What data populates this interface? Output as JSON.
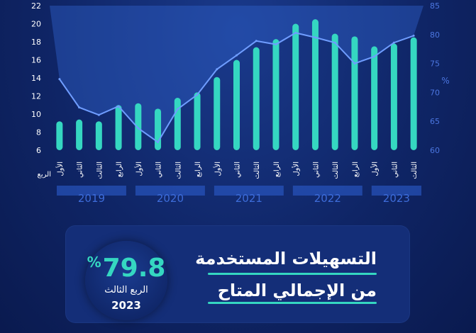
{
  "chart_data": {
    "type": "bar+line",
    "categories": [
      "الأول",
      "الثاني",
      "الثالث",
      "الرابع",
      "الأول",
      "الثاني",
      "الثالث",
      "الرابع",
      "الأول",
      "الثاني",
      "الثالث",
      "الرابع",
      "الأول",
      "الثاني",
      "الثالث",
      "الرابع",
      "الأول",
      "الثاني",
      "الثالث"
    ],
    "years": [
      {
        "label": "2019",
        "count": 4
      },
      {
        "label": "2020",
        "count": 4
      },
      {
        "label": "2021",
        "count": 4
      },
      {
        "label": "2022",
        "count": 4
      },
      {
        "label": "2023",
        "count": 3
      }
    ],
    "axis_category_title": "الربع",
    "series": [
      {
        "kind": "bar",
        "axis": "left",
        "values": [
          9.2,
          9.4,
          9.2,
          11.0,
          11.2,
          10.6,
          11.8,
          12.4,
          14.1,
          16.0,
          17.4,
          18.3,
          20.0,
          20.5,
          18.9,
          18.6,
          17.5,
          17.8,
          18.5
        ]
      },
      {
        "kind": "line",
        "axis": "right",
        "values": [
          72.3,
          67.4,
          66.1,
          67.6,
          63.8,
          61.4,
          67.1,
          69.6,
          74.0,
          76.4,
          78.9,
          78.3,
          80.3,
          79.5,
          78.6,
          75.0,
          76.2,
          78.6,
          79.8
        ]
      }
    ],
    "left_axis": {
      "min": 6,
      "max": 22,
      "ticks": [
        6,
        8,
        10,
        12,
        14,
        16,
        18,
        20,
        22
      ]
    },
    "right_axis": {
      "min": 60,
      "max": 85,
      "ticks": [
        60,
        65,
        70,
        75,
        80,
        85
      ],
      "label": "%"
    },
    "colors": {
      "bar": "#35d7c1",
      "line": "#6f9dff",
      "area": "#2f5fc7",
      "tick": "#4b76e0",
      "year_box": "#2b5ccc",
      "year_text": "#3d6cd9"
    }
  },
  "summary": {
    "title_line1": "التسهيلات المستخدمة",
    "title_line2": "من الإجمالي المتاح",
    "value": "79.8",
    "unit": "%",
    "quarter": "الربع الثالث",
    "year": "2023"
  }
}
